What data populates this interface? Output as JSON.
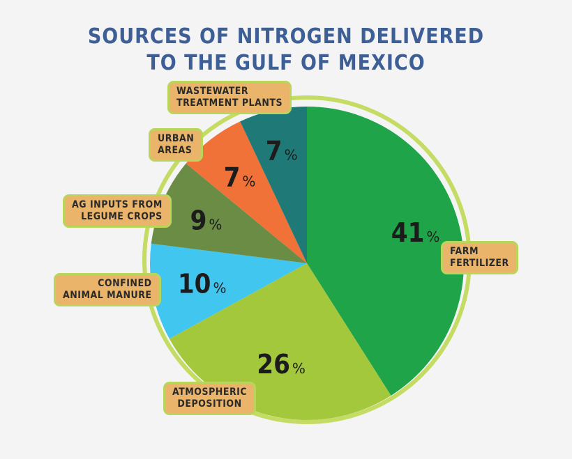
{
  "title": {
    "line1": "SOURCES OF NITROGEN DELIVERED",
    "line2": "TO THE GULF OF MEXICO"
  },
  "colors": {
    "ring": "#c4dc64",
    "label_bg": "#eab56b",
    "label_border": "#b9d65a",
    "title": "#3d5f96"
  },
  "chart_data": {
    "type": "pie",
    "title": "SOURCES OF NITROGEN DELIVERED TO THE GULF OF MEXICO",
    "unit": "%",
    "legend": "callout labels around pie",
    "slices": [
      {
        "label_lines": [
          "FARM",
          "FERTILIZER"
        ],
        "value": 41,
        "color": "#1fa44a"
      },
      {
        "label_lines": [
          "ATMOSPHERIC",
          "DEPOSITION"
        ],
        "value": 26,
        "color": "#a4c83c"
      },
      {
        "label_lines": [
          "CONFINED",
          "ANIMAL MANURE"
        ],
        "value": 10,
        "color": "#41c6f0"
      },
      {
        "label_lines": [
          "AG INPUTS FROM",
          "LEGUME CROPS"
        ],
        "value": 9,
        "color": "#6b8c45"
      },
      {
        "label_lines": [
          "URBAN",
          "AREAS"
        ],
        "value": 7,
        "color": "#f07238"
      },
      {
        "label_lines": [
          "WASTEWATER",
          "TREATMENT PLANTS"
        ],
        "value": 7,
        "color": "#1f7a77"
      }
    ]
  }
}
